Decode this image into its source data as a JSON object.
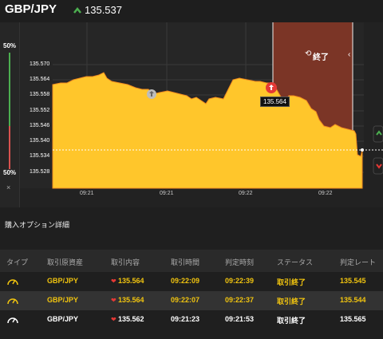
{
  "header": {
    "pair": "GBP/JPY",
    "price": "135.537"
  },
  "left_panel": {
    "top_pct": "50%",
    "bottom_pct": "50%",
    "close_label": "×"
  },
  "chart": {
    "y_ticks": [
      "135.570",
      "135.564",
      "135.558",
      "135.552",
      "135.546",
      "135.540",
      "135.534",
      "135.528"
    ],
    "x_ticks": [
      "09:21",
      "09:21",
      "09:22",
      "09:22"
    ],
    "end_label": "終了",
    "tooltip": "135.564",
    "fill_color": "#ffc62b",
    "expired_zone_color": "#7b3526"
  },
  "section_title": "購入オプション詳細",
  "table": {
    "headers": [
      "タイプ",
      "取引原資産",
      "取引内容",
      "取引時間",
      "判定時刻",
      "ステータス",
      "判定レート"
    ],
    "rows": [
      {
        "asset": "GBP/JPY",
        "content": "135.564",
        "time": "09:22:09",
        "judge_time": "09:22:39",
        "status": "取引終了",
        "rate": "135.545"
      },
      {
        "asset": "GBP/JPY",
        "content": "135.564",
        "time": "09:22:07",
        "judge_time": "09:22:37",
        "status": "取引終了",
        "rate": "135.544"
      },
      {
        "asset": "GBP/JPY",
        "content": "135.562",
        "time": "09:21:23",
        "judge_time": "09:21:53",
        "status": "取引終了",
        "rate": "135.565"
      }
    ]
  }
}
